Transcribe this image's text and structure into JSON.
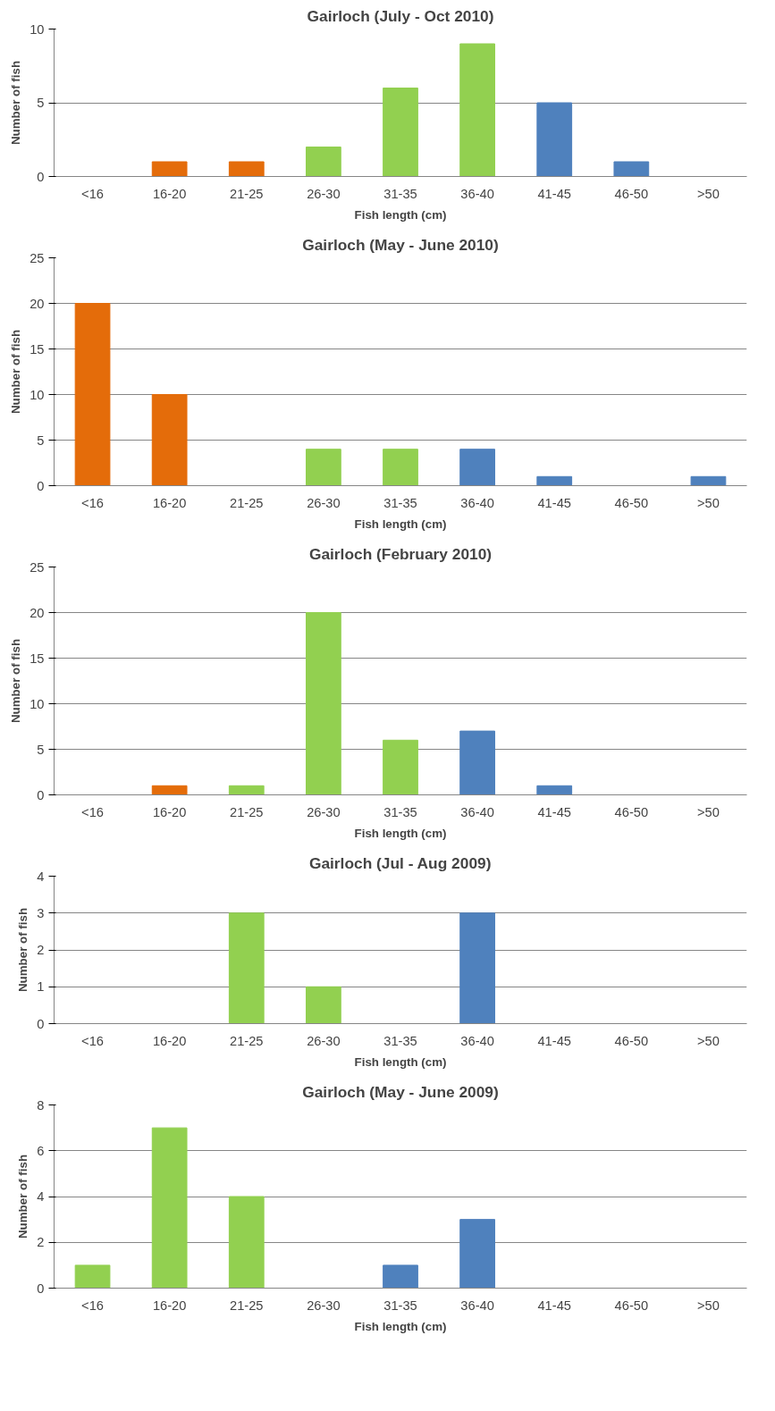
{
  "chart_data": [
    {
      "type": "bar",
      "title": "Gairloch (July - Oct 2010)",
      "xlabel": "Fish length (cm)",
      "ylabel": "Number of fish",
      "categories": [
        "<16",
        "16-20",
        "21-25",
        "26-30",
        "31-35",
        "36-40",
        "41-45",
        "46-50",
        ">50"
      ],
      "values": [
        0,
        1,
        1,
        2,
        6,
        9,
        5,
        1,
        0
      ],
      "colors": [
        "#e46c0a",
        "#e46c0a",
        "#e46c0a",
        "#92d050",
        "#92d050",
        "#92d050",
        "#4f81bd",
        "#4f81bd",
        "#4f81bd"
      ],
      "ylim": [
        0,
        10
      ],
      "yticks": [
        0,
        5,
        10
      ],
      "grid": "y"
    },
    {
      "type": "bar",
      "title": "Gairloch (May - June 2010)",
      "xlabel": "Fish length (cm)",
      "ylabel": "Number of fish",
      "categories": [
        "<16",
        "16-20",
        "21-25",
        "26-30",
        "31-35",
        "36-40",
        "41-45",
        "46-50",
        ">50"
      ],
      "values": [
        20,
        10,
        0,
        4,
        4,
        4,
        1,
        0,
        1
      ],
      "colors": [
        "#e46c0a",
        "#e46c0a",
        "#92d050",
        "#92d050",
        "#92d050",
        "#4f81bd",
        "#4f81bd",
        "#4f81bd",
        "#4f81bd"
      ],
      "ylim": [
        0,
        25
      ],
      "yticks": [
        0,
        5,
        10,
        15,
        20,
        25
      ],
      "grid": "y"
    },
    {
      "type": "bar",
      "title": "Gairloch (February 2010)",
      "xlabel": "Fish length (cm)",
      "ylabel": "Number of fish",
      "categories": [
        "<16",
        "16-20",
        "21-25",
        "26-30",
        "31-35",
        "36-40",
        "41-45",
        "46-50",
        ">50"
      ],
      "values": [
        0,
        1,
        1,
        20,
        6,
        7,
        1,
        0,
        0
      ],
      "colors": [
        "#e46c0a",
        "#e46c0a",
        "#92d050",
        "#92d050",
        "#92d050",
        "#4f81bd",
        "#4f81bd",
        "#4f81bd",
        "#4f81bd"
      ],
      "ylim": [
        0,
        25
      ],
      "yticks": [
        0,
        5,
        10,
        15,
        20,
        25
      ],
      "grid": "y"
    },
    {
      "type": "bar",
      "title": "Gairloch (Jul - Aug 2009)",
      "xlabel": "Fish length (cm)",
      "ylabel": "Number of fish",
      "categories": [
        "<16",
        "16-20",
        "21-25",
        "26-30",
        "31-35",
        "36-40",
        "41-45",
        "46-50",
        ">50"
      ],
      "values": [
        0,
        0,
        3,
        1,
        0,
        3,
        0,
        0,
        0
      ],
      "colors": [
        "#92d050",
        "#92d050",
        "#92d050",
        "#92d050",
        "#4f81bd",
        "#4f81bd",
        "#4f81bd",
        "#4f81bd",
        "#4f81bd"
      ],
      "ylim": [
        0,
        4
      ],
      "yticks": [
        0,
        1,
        2,
        3,
        4
      ],
      "grid": "y"
    },
    {
      "type": "bar",
      "title": "Gairloch (May - June 2009)",
      "xlabel": "Fish length (cm)",
      "ylabel": "Number of fish",
      "categories": [
        "<16",
        "16-20",
        "21-25",
        "26-30",
        "31-35",
        "36-40",
        "41-45",
        "46-50",
        ">50"
      ],
      "values": [
        1,
        7,
        4,
        0,
        1,
        3,
        0,
        0,
        0
      ],
      "colors": [
        "#92d050",
        "#92d050",
        "#92d050",
        "#92d050",
        "#4f81bd",
        "#4f81bd",
        "#4f81bd",
        "#4f81bd",
        "#4f81bd"
      ],
      "ylim": [
        0,
        8
      ],
      "yticks": [
        0,
        2,
        4,
        6,
        8
      ],
      "grid": "y"
    }
  ]
}
